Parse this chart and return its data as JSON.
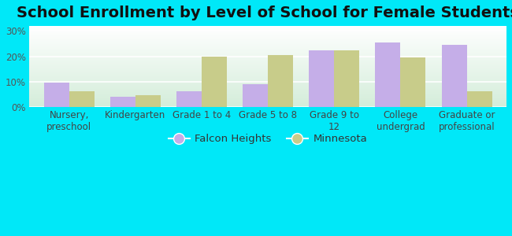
{
  "title": "School Enrollment by Level of School for Female Students",
  "categories": [
    "Nursery,\npreschool",
    "Kindergarten",
    "Grade 1 to 4",
    "Grade 5 to 8",
    "Grade 9 to\n12",
    "College\nundergrad",
    "Graduate or\nprofessional"
  ],
  "falcon_heights": [
    9.5,
    4.0,
    6.0,
    9.0,
    22.5,
    25.5,
    24.5
  ],
  "minnesota": [
    6.0,
    4.5,
    20.0,
    20.5,
    22.5,
    19.5,
    6.0
  ],
  "falcon_color": "#c5aee8",
  "minnesota_color": "#c8cc8a",
  "ylim": [
    0,
    32
  ],
  "yticks": [
    0,
    10,
    20,
    30
  ],
  "ytick_labels": [
    "0%",
    "10%",
    "20%",
    "30%"
  ],
  "bar_width": 0.38,
  "background_color": "#00e8f8",
  "legend_falcon": "Falcon Heights",
  "legend_minnesota": "Minnesota",
  "title_fontsize": 14,
  "tick_fontsize": 8.5,
  "legend_fontsize": 9.5
}
